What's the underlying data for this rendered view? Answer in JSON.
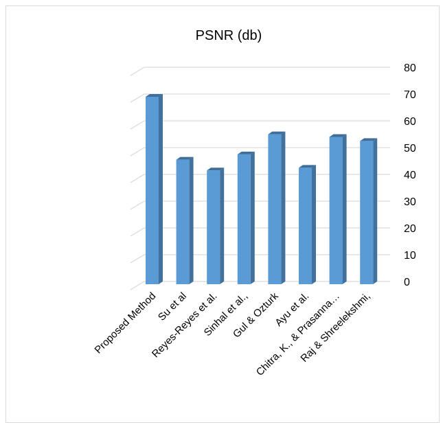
{
  "chart_data": {
    "type": "bar",
    "title": "PSNR (db)",
    "categories": [
      "Proposed Method",
      "Su et al",
      "Reyes-Reyes et al.",
      "Sinhal et al.,",
      "Gul & Ozturk",
      "Ayu et al.",
      "Chitra, K., & Prasanna…",
      "Raj & Shreelekshmi,"
    ],
    "values": [
      70,
      46.5,
      42.5,
      48.5,
      56,
      43.5,
      55,
      53.5
    ],
    "yticks": [
      "0",
      "10",
      "20",
      "30",
      "40",
      "50",
      "60",
      "70",
      "80"
    ],
    "ylim": [
      0,
      80
    ],
    "xlabel": "",
    "ylabel": "",
    "grid": true,
    "style": "3d-column",
    "colors": {
      "bar_front": "#5b9bd5",
      "bar_side": "#41719c",
      "bar_top": "#3e6e99",
      "grid": "#d9d9d9"
    }
  }
}
